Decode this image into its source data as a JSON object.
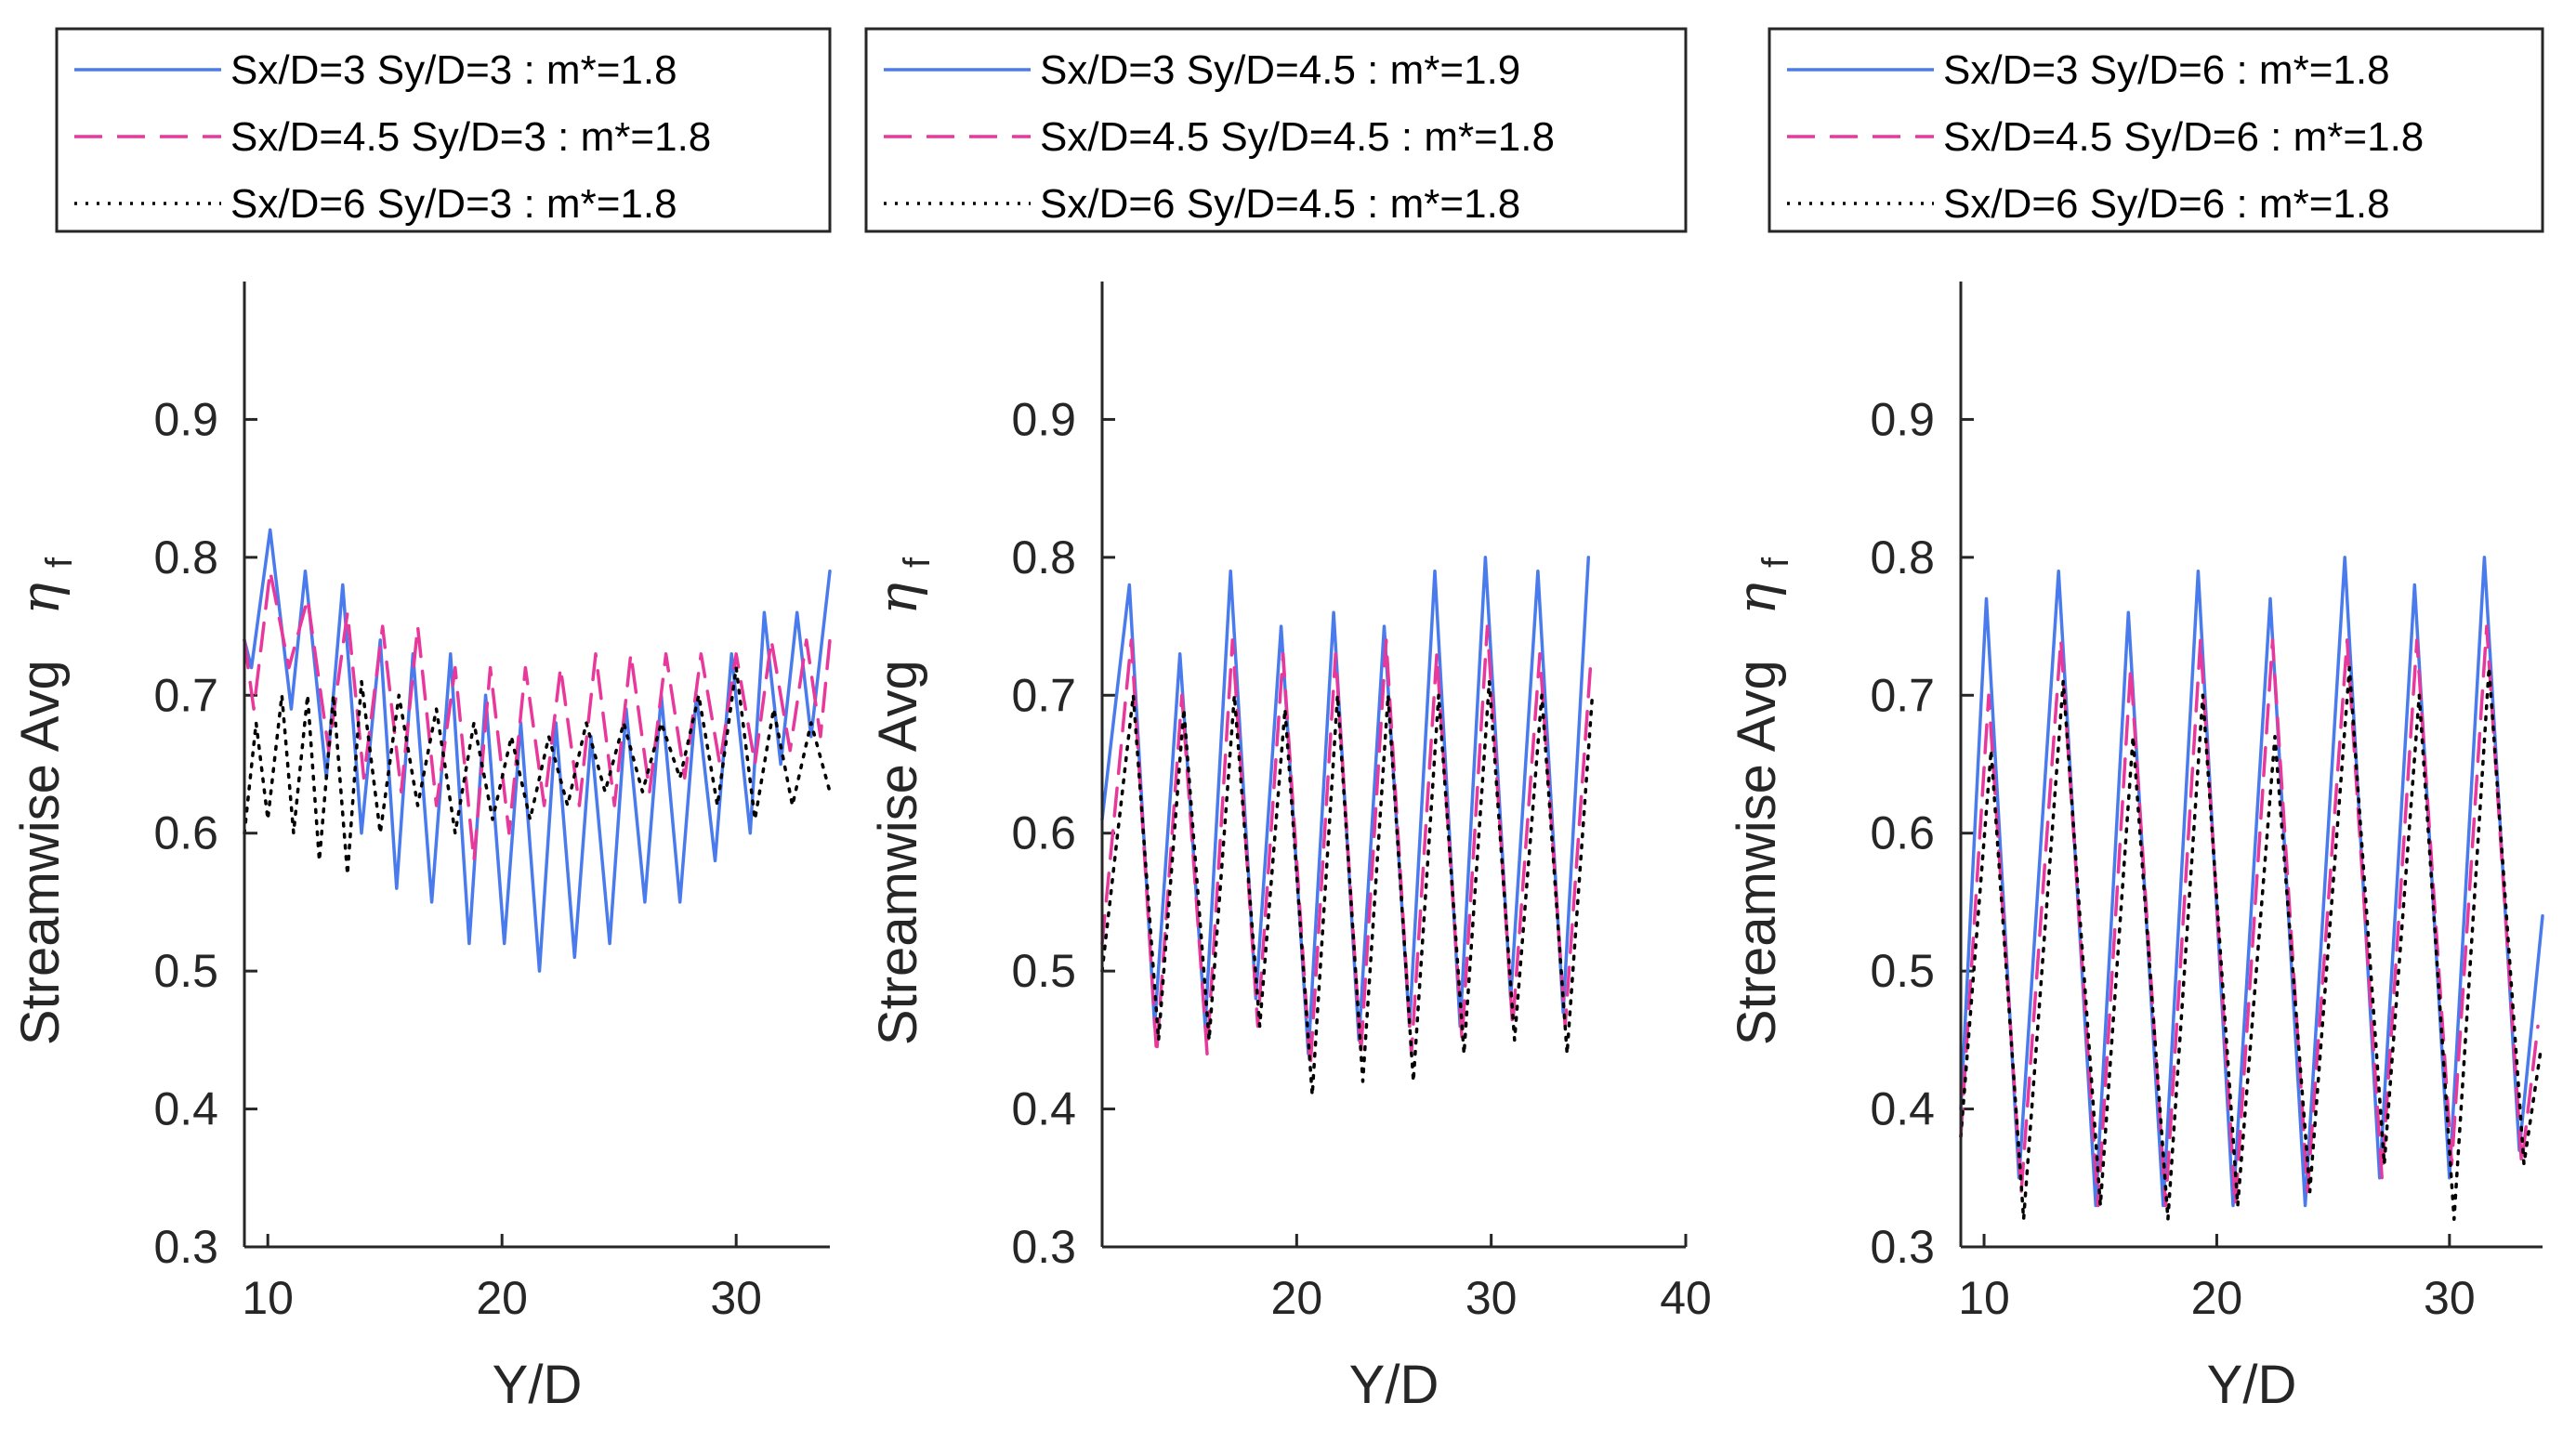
{
  "chart_data": [
    {
      "type": "line",
      "xlabel": "Y/D",
      "ylabel": "Streamwise Avg",
      "ylabel_symbol": "η",
      "ylabel_subscript": "f",
      "xlim": [
        9,
        34
      ],
      "ylim": [
        0.3,
        1.0
      ],
      "xticks": [
        10,
        20,
        30
      ],
      "xtick_labels": [
        "10",
        "20",
        "30"
      ],
      "yticks": [
        0.3,
        0.4,
        0.5,
        0.6,
        0.7,
        0.8,
        0.9
      ],
      "ytick_labels": [
        "0.3",
        "0.4",
        "0.5",
        "0.6",
        "0.7",
        "0.8",
        "0.9"
      ],
      "legend_position": "above-axes",
      "series": [
        {
          "name": "Sx/D=3 Sy/D=3 : m*=1.8",
          "style": "solid",
          "color": "#4a7bec",
          "x": [
            9.0,
            9.3,
            10.1,
            11.0,
            11.6,
            12.5,
            13.2,
            14.0,
            14.8,
            15.5,
            16.2,
            17.0,
            17.8,
            18.6,
            19.3,
            20.1,
            20.8,
            21.6,
            22.3,
            23.1,
            23.8,
            24.6,
            25.3,
            26.1,
            26.8,
            27.6,
            28.3,
            29.1,
            29.8,
            30.6,
            31.2,
            31.9,
            32.6,
            33.2,
            34.0
          ],
          "y": [
            0.74,
            0.72,
            0.82,
            0.69,
            0.79,
            0.64,
            0.78,
            0.6,
            0.74,
            0.56,
            0.73,
            0.55,
            0.73,
            0.52,
            0.7,
            0.52,
            0.68,
            0.5,
            0.68,
            0.51,
            0.67,
            0.52,
            0.69,
            0.55,
            0.7,
            0.55,
            0.7,
            0.58,
            0.73,
            0.6,
            0.76,
            0.65,
            0.76,
            0.67,
            0.79
          ]
        },
        {
          "name": "Sx/D=4.5 Sy/D=3 : m*=1.8",
          "style": "dashed",
          "color": "#e8389c",
          "x": [
            9.0,
            9.4,
            10.1,
            10.9,
            11.7,
            12.6,
            13.4,
            14.1,
            14.9,
            15.7,
            16.4,
            17.2,
            18.0,
            18.8,
            19.5,
            20.3,
            21.0,
            21.8,
            22.5,
            23.3,
            24.0,
            24.8,
            25.5,
            26.3,
            27.0,
            27.8,
            28.5,
            29.3,
            30.0,
            30.8,
            31.5,
            32.3,
            33.0,
            33.6,
            34.0
          ],
          "y": [
            0.74,
            0.69,
            0.79,
            0.72,
            0.77,
            0.66,
            0.76,
            0.64,
            0.75,
            0.63,
            0.75,
            0.62,
            0.72,
            0.58,
            0.72,
            0.6,
            0.72,
            0.62,
            0.72,
            0.62,
            0.73,
            0.62,
            0.73,
            0.63,
            0.73,
            0.64,
            0.73,
            0.65,
            0.73,
            0.65,
            0.74,
            0.66,
            0.74,
            0.67,
            0.74
          ]
        },
        {
          "name": "Sx/D=6 Sy/D=3 : m*=1.8",
          "style": "dotted",
          "color": "#000000",
          "x": [
            9.0,
            9.5,
            10.0,
            10.6,
            11.1,
            11.7,
            12.2,
            12.8,
            13.4,
            14.0,
            14.8,
            15.6,
            16.4,
            17.2,
            18.0,
            18.8,
            19.6,
            20.4,
            21.2,
            22.0,
            22.8,
            23.6,
            24.4,
            25.2,
            26.0,
            26.8,
            27.6,
            28.4,
            29.2,
            30.0,
            30.8,
            31.6,
            32.4,
            33.2,
            34.0
          ],
          "y": [
            0.6,
            0.68,
            0.61,
            0.7,
            0.6,
            0.7,
            0.58,
            0.7,
            0.57,
            0.71,
            0.6,
            0.7,
            0.62,
            0.69,
            0.6,
            0.68,
            0.61,
            0.67,
            0.61,
            0.67,
            0.62,
            0.68,
            0.63,
            0.68,
            0.63,
            0.68,
            0.64,
            0.7,
            0.62,
            0.72,
            0.61,
            0.69,
            0.62,
            0.68,
            0.63
          ]
        }
      ]
    },
    {
      "type": "line",
      "xlabel": "Y/D",
      "ylabel": "Streamwise Avg",
      "ylabel_symbol": "η",
      "ylabel_subscript": "f",
      "xlim": [
        10,
        40
      ],
      "ylim": [
        0.3,
        1.0
      ],
      "xticks": [
        20,
        30,
        40
      ],
      "xtick_labels": [
        "20",
        "30",
        "40"
      ],
      "yticks": [
        0.3,
        0.4,
        0.5,
        0.6,
        0.7,
        0.8,
        0.9
      ],
      "ytick_labels": [
        "0.3",
        "0.4",
        "0.5",
        "0.6",
        "0.7",
        "0.8",
        "0.9"
      ],
      "legend_position": "above-axes",
      "series": [
        {
          "name": "Sx/D=3 Sy/D=4.5 : m*=1.9",
          "style": "solid",
          "color": "#4a7bec",
          "x": [
            10.0,
            11.4,
            12.7,
            14.0,
            15.3,
            16.6,
            17.9,
            19.2,
            20.6,
            21.9,
            23.2,
            24.5,
            25.8,
            27.1,
            28.4,
            29.7,
            31.0,
            32.4,
            33.7,
            35.0
          ],
          "y": [
            0.61,
            0.78,
            0.46,
            0.73,
            0.46,
            0.79,
            0.48,
            0.75,
            0.44,
            0.76,
            0.45,
            0.75,
            0.46,
            0.79,
            0.46,
            0.8,
            0.48,
            0.79,
            0.47,
            0.8
          ]
        },
        {
          "name": "Sx/D=4.5 Sy/D=4.5 : m*=1.8",
          "style": "dashed",
          "color": "#e8389c",
          "x": [
            10.0,
            11.5,
            12.8,
            14.1,
            15.4,
            16.7,
            18.0,
            19.3,
            20.7,
            22.0,
            23.3,
            24.6,
            25.9,
            27.2,
            28.5,
            29.8,
            31.1,
            32.5,
            33.8,
            35.1
          ],
          "y": [
            0.52,
            0.74,
            0.44,
            0.7,
            0.44,
            0.74,
            0.46,
            0.73,
            0.43,
            0.73,
            0.44,
            0.74,
            0.44,
            0.73,
            0.45,
            0.75,
            0.46,
            0.73,
            0.46,
            0.72
          ]
        },
        {
          "name": "Sx/D=6 Sy/D=4.5 : m*=1.8",
          "style": "dotted",
          "color": "#000000",
          "x": [
            10.0,
            11.6,
            12.9,
            14.2,
            15.5,
            16.8,
            18.1,
            19.4,
            20.8,
            22.1,
            23.4,
            24.7,
            26.0,
            27.3,
            28.6,
            29.9,
            31.2,
            32.6,
            33.9,
            35.2
          ],
          "y": [
            0.5,
            0.7,
            0.45,
            0.69,
            0.45,
            0.7,
            0.46,
            0.69,
            0.41,
            0.7,
            0.42,
            0.7,
            0.42,
            0.7,
            0.44,
            0.71,
            0.45,
            0.7,
            0.44,
            0.7
          ]
        }
      ]
    },
    {
      "type": "line",
      "xlabel": "Y/D",
      "ylabel": "Streamwise Avg",
      "ylabel_symbol": "η",
      "ylabel_subscript": "f",
      "xlim": [
        9,
        34
      ],
      "ylim": [
        0.3,
        1.0
      ],
      "xticks": [
        10,
        20,
        30
      ],
      "xtick_labels": [
        "10",
        "20",
        "30"
      ],
      "yticks": [
        0.3,
        0.4,
        0.5,
        0.6,
        0.7,
        0.8,
        0.9
      ],
      "ytick_labels": [
        "0.3",
        "0.4",
        "0.5",
        "0.6",
        "0.7",
        "0.8",
        "0.9"
      ],
      "legend_position": "above-axes",
      "series": [
        {
          "name": "Sx/D=3 Sy/D=6 : m*=1.8",
          "style": "solid",
          "color": "#4a7bec",
          "x": [
            9.0,
            10.1,
            11.5,
            13.2,
            14.8,
            16.2,
            17.7,
            19.2,
            20.7,
            22.3,
            23.8,
            25.5,
            27.0,
            28.5,
            30.0,
            31.5,
            33.0,
            34.0
          ],
          "y": [
            0.4,
            0.77,
            0.35,
            0.79,
            0.33,
            0.76,
            0.33,
            0.79,
            0.33,
            0.77,
            0.33,
            0.8,
            0.35,
            0.78,
            0.35,
            0.8,
            0.37,
            0.54
          ]
        },
        {
          "name": "Sx/D=4.5 Sy/D=6 : m*=1.8",
          "style": "dashed",
          "color": "#e8389c",
          "x": [
            9.0,
            10.2,
            11.6,
            13.3,
            14.9,
            16.3,
            17.8,
            19.3,
            20.8,
            22.4,
            23.9,
            25.6,
            27.1,
            28.6,
            30.1,
            31.6,
            33.1,
            33.8
          ],
          "y": [
            0.38,
            0.7,
            0.34,
            0.74,
            0.33,
            0.72,
            0.33,
            0.74,
            0.33,
            0.74,
            0.34,
            0.74,
            0.35,
            0.74,
            0.36,
            0.75,
            0.36,
            0.46
          ]
        },
        {
          "name": "Sx/D=6 Sy/D=6 : m*=1.8",
          "style": "dotted",
          "color": "#000000",
          "x": [
            9.0,
            10.3,
            11.7,
            13.4,
            15.0,
            16.4,
            17.9,
            19.4,
            20.9,
            22.5,
            24.0,
            25.7,
            27.2,
            28.7,
            30.2,
            31.7,
            33.2,
            33.9
          ],
          "y": [
            0.38,
            0.66,
            0.32,
            0.71,
            0.33,
            0.67,
            0.32,
            0.7,
            0.33,
            0.67,
            0.34,
            0.72,
            0.36,
            0.7,
            0.32,
            0.72,
            0.36,
            0.44
          ]
        }
      ]
    }
  ]
}
